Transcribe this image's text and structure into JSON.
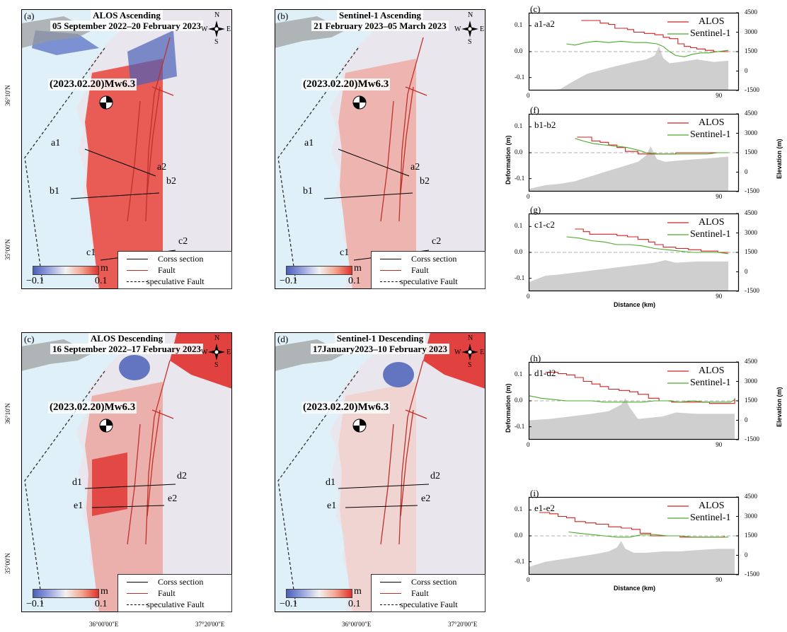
{
  "maps": [
    {
      "letter": "(a)",
      "title1": "ALOS Ascending",
      "title2": "05 September 2022–20 February 2023",
      "quake": "(2023.02.20)Mw6.3",
      "sections": [
        [
          "a1",
          "a2"
        ],
        [
          "b1",
          "b2"
        ],
        [
          "c1",
          "c2"
        ]
      ]
    },
    {
      "letter": "(b)",
      "title1": "Sentinel-1 Ascending",
      "title2": "21 February 2023–05 March 2023",
      "quake": "(2023.02.20)Mw6.3",
      "sections": [
        [
          "a1",
          "a2"
        ],
        [
          "b1",
          "b2"
        ],
        [
          "c1",
          "c2"
        ]
      ]
    },
    {
      "letter": "(c)",
      "title1": "ALOS Descending",
      "title2": "16 September 2022–17 February 2023",
      "quake": "(2023.02.20)Mw6.3",
      "sections": [
        [
          "d1",
          "d2"
        ],
        [
          "e1",
          "e2"
        ]
      ]
    },
    {
      "letter": "(d)",
      "title1": "Sentinel-1 Descending",
      "title2": "17January2023–10 February 2023",
      "quake": "(2023.02.20)Mw6.3",
      "sections": [
        [
          "d1",
          "d2"
        ],
        [
          "e1",
          "e2"
        ]
      ]
    }
  ],
  "compass": {
    "n": "N",
    "s": "S",
    "e": "E",
    "w": "W"
  },
  "colorbar": {
    "min": "−0.1",
    "max": "0.1",
    "unit": "m"
  },
  "legend": {
    "section": "Corss section",
    "fault": "Fault",
    "speculative": "speculative Fault"
  },
  "lat_ticks": [
    "36°10'N",
    "35°00'N"
  ],
  "lon_ticks": [
    "36°00'00\"E",
    "37°20'00\"E"
  ],
  "colors": {
    "alos": "#d42020",
    "sentinel": "#4aab2a",
    "fault": "#c0302a",
    "sea": "#dff0f8",
    "topo": "#cfcfcf"
  },
  "chart_data": [
    {
      "panel": "(c)",
      "type": "line",
      "title": "a1-a2",
      "xlabel": "Distance (km)",
      "ylabel": "Deformation (m)",
      "y2label": "Elevation (m)",
      "ylim": [
        -0.15,
        0.15
      ],
      "y2lim": [
        -1500,
        4500
      ],
      "xlim": [
        0,
        100
      ],
      "yticks": [
        "0.1",
        "0.0",
        "-0.1"
      ],
      "y2ticks": [
        "4500",
        "3000",
        "1500",
        "0",
        "-1500"
      ],
      "xticks": [
        "0",
        "90"
      ],
      "series": [
        {
          "name": "ALOS",
          "x": [
            25,
            31,
            34,
            38,
            41,
            47,
            50,
            55,
            60,
            64,
            67,
            71,
            74,
            77,
            80,
            84,
            88,
            95
          ],
          "y": [
            0.12,
            0.12,
            0.11,
            0.105,
            0.09,
            0.085,
            0.075,
            0.07,
            0.065,
            0.055,
            0.05,
            0.03,
            0.02,
            0.015,
            0.01,
            0.005,
            0.0,
            0.0
          ]
        },
        {
          "name": "Sentinel-1",
          "x": [
            18,
            22,
            27,
            32,
            38,
            44,
            50,
            56,
            61,
            64,
            67,
            70,
            74,
            78,
            82,
            86,
            90,
            95
          ],
          "y": [
            0.03,
            0.025,
            0.035,
            0.04,
            0.035,
            0.04,
            0.035,
            0.035,
            0.03,
            0.02,
            0.0,
            -0.015,
            -0.02,
            -0.01,
            -0.005,
            -0.005,
            0.0,
            0.005
          ]
        },
        {
          "name": "elevation",
          "x": [
            0,
            10,
            15,
            20,
            28,
            35,
            42,
            50,
            56,
            60,
            62,
            64,
            67,
            72,
            80,
            88,
            95
          ],
          "y": [
            -1500,
            -1500,
            -1400,
            -900,
            -200,
            100,
            400,
            700,
            900,
            1200,
            1900,
            1000,
            600,
            700,
            900,
            700,
            800
          ]
        }
      ]
    },
    {
      "panel": "(f)",
      "type": "line",
      "title": "b1-b2",
      "xlabel": "Distance (km)",
      "ylabel": "Deformation (m)",
      "y2label": "Elevation (m)",
      "ylim": [
        -0.15,
        0.15
      ],
      "y2lim": [
        -1500,
        4500
      ],
      "xlim": [
        0,
        100
      ],
      "yticks": [
        "0.1",
        "0.0",
        "-0.1"
      ],
      "y2ticks": [
        "4500",
        "3000",
        "1500",
        "0",
        "-1500"
      ],
      "xticks": [
        "0",
        "90"
      ],
      "series": [
        {
          "name": "ALOS",
          "x": [
            23,
            27,
            30,
            34,
            38,
            42,
            46,
            52,
            60,
            70,
            80,
            88,
            95
          ],
          "y": [
            0.06,
            0.06,
            0.045,
            0.04,
            0.03,
            0.02,
            0.005,
            -0.005,
            -0.005,
            0.0,
            0.0,
            0.0,
            0.0
          ]
        },
        {
          "name": "Sentinel-1",
          "x": [
            22,
            26,
            31,
            36,
            42,
            47,
            52,
            56,
            62,
            70,
            78,
            85,
            90,
            95
          ],
          "y": [
            0.055,
            0.045,
            0.035,
            0.03,
            0.025,
            0.02,
            0.01,
            0.0,
            -0.005,
            -0.005,
            -0.005,
            -0.005,
            0.0,
            0.0
          ]
        },
        {
          "name": "elevation",
          "x": [
            0,
            8,
            15,
            22,
            30,
            38,
            46,
            52,
            56,
            58,
            61,
            65,
            72,
            80,
            88,
            95
          ],
          "y": [
            -1300,
            -1000,
            -900,
            -700,
            -300,
            100,
            500,
            800,
            1300,
            2000,
            1000,
            800,
            900,
            1000,
            1100,
            1200
          ]
        }
      ]
    },
    {
      "panel": "(g)",
      "type": "line",
      "title": "c1-c2",
      "xlabel": "Distance (km)",
      "ylabel": "Deformation (m)",
      "y2label": "Elevation (m)",
      "ylim": [
        -0.15,
        0.15
      ],
      "y2lim": [
        -1500,
        4500
      ],
      "xlim": [
        0,
        100
      ],
      "yticks": [
        "0.1",
        "0.0",
        "-0.1"
      ],
      "y2ticks": [
        "4500",
        "3000",
        "1500",
        "0",
        "-1500"
      ],
      "xticks": [
        "0",
        "90"
      ],
      "series": [
        {
          "name": "ALOS",
          "x": [
            22,
            26,
            29,
            33,
            37,
            42,
            47,
            52,
            57,
            60,
            64,
            70,
            76,
            82,
            90,
            95
          ],
          "y": [
            0.09,
            0.08,
            0.07,
            0.07,
            0.07,
            0.065,
            0.06,
            0.05,
            0.04,
            0.03,
            0.02,
            0.015,
            0.01,
            0.005,
            0.0,
            0.0
          ]
        },
        {
          "name": "Sentinel-1",
          "x": [
            18,
            24,
            30,
            36,
            42,
            48,
            54,
            60,
            66,
            72,
            78,
            84,
            90,
            95
          ],
          "y": [
            0.06,
            0.055,
            0.045,
            0.04,
            0.03,
            0.03,
            0.025,
            0.015,
            0.01,
            0.005,
            0.0,
            0.0,
            0.0,
            -0.005
          ]
        },
        {
          "name": "elevation",
          "x": [
            0,
            8,
            15,
            25,
            35,
            45,
            55,
            60,
            65,
            70,
            80,
            90,
            95
          ],
          "y": [
            -800,
            -300,
            -200,
            0,
            200,
            400,
            600,
            700,
            900,
            700,
            800,
            800,
            800
          ]
        }
      ]
    },
    {
      "panel": "(h)",
      "type": "line",
      "title": "d1-d2",
      "xlabel": "",
      "ylabel": "Deformation (m)",
      "y2label": "Elevation (m)",
      "ylim": [
        -0.15,
        0.15
      ],
      "y2lim": [
        -1500,
        4500
      ],
      "xlim": [
        0,
        100
      ],
      "yticks": [
        "0.1",
        "0.0",
        "-0.1"
      ],
      "y2ticks": [
        "4500",
        "3000",
        "1500",
        "0",
        "-1500"
      ],
      "xticks": [
        "0",
        "90"
      ],
      "series": [
        {
          "name": "ALOS",
          "x": [
            8,
            14,
            18,
            22,
            26,
            30,
            34,
            38,
            43,
            48,
            52,
            57,
            62,
            68,
            74,
            80,
            86,
            92,
            98
          ],
          "y": [
            0.11,
            0.105,
            0.1,
            0.09,
            0.075,
            0.065,
            0.055,
            0.045,
            0.04,
            0.035,
            0.025,
            0.01,
            0.0,
            -0.005,
            -0.005,
            -0.005,
            -0.01,
            -0.01,
            0.01
          ]
        },
        {
          "name": "Sentinel-1",
          "x": [
            0,
            6,
            12,
            18,
            24,
            30,
            36,
            42,
            48,
            54,
            60,
            66,
            72,
            78,
            84,
            90,
            96,
            98
          ],
          "y": [
            0.02,
            0.01,
            0.005,
            0.0,
            0.0,
            0.0,
            -0.005,
            -0.005,
            -0.005,
            -0.005,
            0.0,
            0.0,
            -0.005,
            0.0,
            -0.005,
            -0.005,
            -0.005,
            0.005
          ]
        },
        {
          "name": "elevation",
          "x": [
            0,
            10,
            20,
            30,
            38,
            44,
            46,
            48,
            52,
            58,
            64,
            70,
            80,
            90,
            98
          ],
          "y": [
            0,
            100,
            300,
            500,
            700,
            1200,
            1700,
            1000,
            100,
            200,
            300,
            600,
            500,
            500,
            500
          ]
        }
      ]
    },
    {
      "panel": "(i)",
      "type": "line",
      "title": "e1-e2",
      "xlabel": "Distance (km)",
      "ylabel": "",
      "y2label": "",
      "ylim": [
        -0.15,
        0.15
      ],
      "y2lim": [
        -1500,
        4500
      ],
      "xlim": [
        0,
        100
      ],
      "yticks": [
        "0.1",
        "0.0",
        "-0.1"
      ],
      "y2ticks": [
        "4500",
        "3000",
        "1500",
        "0",
        "-1500"
      ],
      "xticks": [
        "0",
        "90"
      ],
      "series": [
        {
          "name": "ALOS",
          "x": [
            5,
            10,
            14,
            18,
            22,
            27,
            32,
            38,
            44,
            49,
            53,
            58,
            64,
            72,
            80,
            88,
            93
          ],
          "y": [
            0.09,
            0.085,
            0.075,
            0.07,
            0.055,
            0.05,
            0.045,
            0.035,
            0.03,
            0.025,
            0.01,
            0.0,
            0.0,
            -0.005,
            -0.005,
            -0.005,
            0.0
          ]
        },
        {
          "name": "Sentinel-1",
          "x": [
            19,
            24,
            30,
            36,
            42,
            48,
            54,
            60,
            66,
            72,
            78,
            84,
            90,
            95
          ],
          "y": [
            0.015,
            0.01,
            0.005,
            0.0,
            -0.005,
            -0.005,
            0.005,
            0.005,
            0.0,
            0.0,
            -0.005,
            -0.005,
            -0.005,
            -0.005
          ]
        },
        {
          "name": "elevation",
          "x": [
            0,
            8,
            16,
            24,
            32,
            38,
            42,
            44,
            46,
            50,
            56,
            64,
            72,
            80,
            90,
            98
          ],
          "y": [
            -900,
            -500,
            -300,
            -100,
            100,
            300,
            600,
            1100,
            500,
            200,
            200,
            300,
            300,
            400,
            500,
            500
          ]
        }
      ]
    }
  ]
}
